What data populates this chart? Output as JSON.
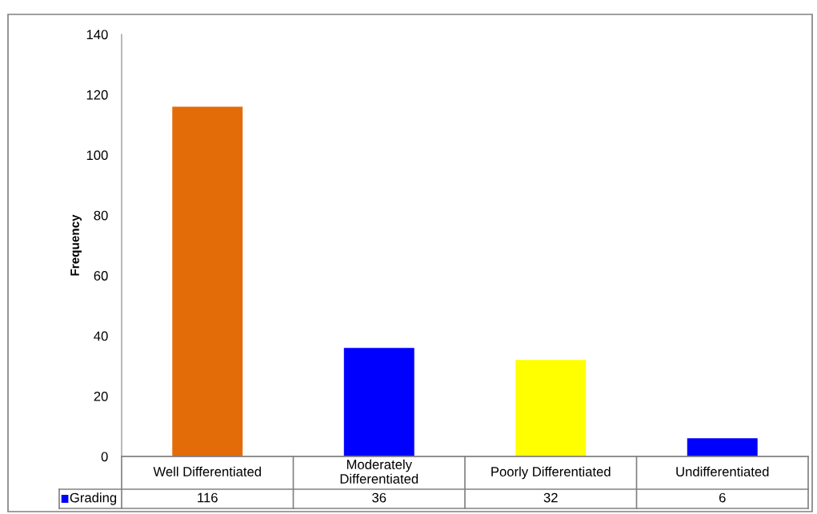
{
  "chart_data": {
    "type": "bar",
    "ylabel": "Frequency",
    "categories": [
      "Well Differentiated",
      "Moderately\nDifferentiated",
      "Poorly Differentiated",
      "Undifferentiated"
    ],
    "series": [
      {
        "name": "Grading",
        "color": "#0000ff",
        "colors": [
          "#e36c09",
          "#0000ff",
          "#ffff00",
          "#0000ff"
        ],
        "values": [
          116,
          36,
          32,
          6
        ]
      }
    ],
    "ylim": [
      0,
      140
    ],
    "yticks": [
      0,
      20,
      40,
      60,
      80,
      100,
      120,
      140
    ],
    "grid": false,
    "data_labels": true,
    "legend": "bottom left"
  }
}
